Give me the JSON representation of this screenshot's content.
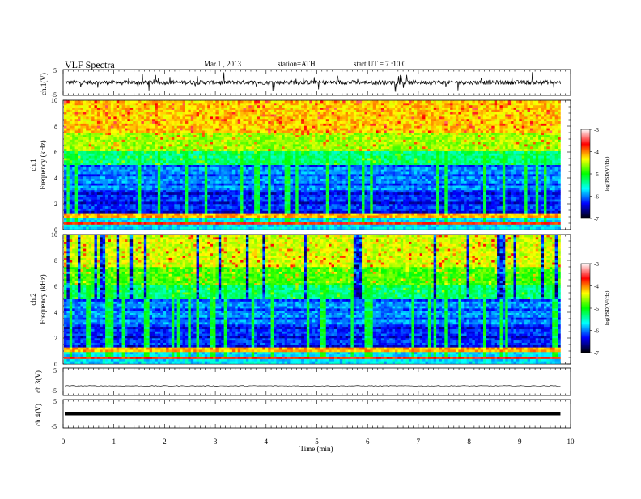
{
  "header": {
    "title": "VLF Spectra",
    "date": "Mar.1 , 2013",
    "station": "station=ATH",
    "start": "start UT = 7 :10:0"
  },
  "colorbar": {
    "label": "log(PSD(V²/Hz)",
    "ticks": [
      "-3",
      "-4",
      "-5",
      "-6",
      "-7"
    ],
    "colors": [
      "#ffffff",
      "#ff0000",
      "#ffff00",
      "#00ff00",
      "#00ffff",
      "#0000ff",
      "#000000"
    ]
  },
  "chart_data": [
    {
      "type": "line",
      "name": "ch1-waveform",
      "ylabel": "ch.1(V)",
      "ylim": [
        -5,
        5
      ],
      "y_ticks": [
        "5",
        "-5"
      ],
      "x": [
        0,
        9.8
      ],
      "description_values": "noisy waveform centered near 0 V"
    },
    {
      "type": "heatmap",
      "name": "ch1-spectrogram",
      "ylabel": "Frequency (kHz)",
      "channel_label": "ch.1",
      "ylim": [
        0,
        10
      ],
      "y_ticks": [
        "0",
        "2",
        "4",
        "6",
        "8",
        "10"
      ],
      "xlim": [
        0,
        9.8
      ],
      "color_scale": [
        -7,
        -3
      ]
    },
    {
      "type": "heatmap",
      "name": "ch2-spectrogram",
      "ylabel": "Frequency (kHz)",
      "channel_label": "ch.2",
      "ylim": [
        0,
        10
      ],
      "y_ticks": [
        "0",
        "2",
        "4",
        "6",
        "8",
        "10"
      ],
      "xlim": [
        0,
        9.8
      ],
      "color_scale": [
        -7,
        -3
      ]
    },
    {
      "type": "line",
      "name": "ch3-waveform",
      "ylabel": "ch.3(V)",
      "ylim": [
        -5,
        5
      ],
      "y_ticks": [
        "5",
        "-5"
      ],
      "x": [
        0,
        9.8
      ],
      "y_level": -1.5
    },
    {
      "type": "line",
      "name": "ch4-waveform",
      "ylabel": "ch.4(V)",
      "ylim": [
        -5,
        5
      ],
      "y_ticks": [
        "5",
        "-5"
      ],
      "x": [
        0,
        9.8
      ],
      "y_level": 0
    }
  ],
  "x_axis": {
    "label": "Time (min)",
    "ticks": [
      "0",
      "1",
      "2",
      "3",
      "4",
      "5",
      "6",
      "7",
      "8",
      "9",
      "10"
    ],
    "xlim": [
      0,
      10
    ],
    "data_end": 9.8
  }
}
